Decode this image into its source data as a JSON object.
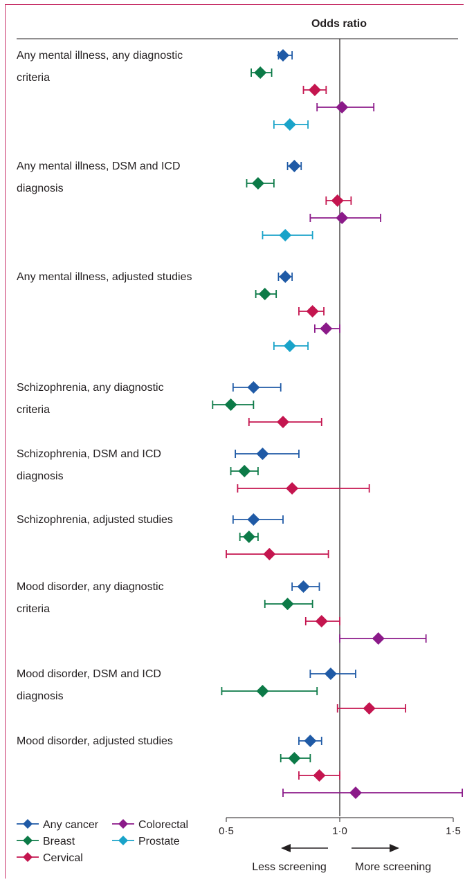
{
  "colors": {
    "Any cancer": "#1f5aa6",
    "Breast": "#0c7a47",
    "Cervical": "#c4154f",
    "Colorectal": "#8b1a89",
    "Prostate": "#19a3c9",
    "frame": "#c8346a",
    "text": "#231f20"
  },
  "chart_data": {
    "type": "forest",
    "xlabel": "Odds ratio",
    "xlim": [
      0.5,
      1.5
    ],
    "ticks": [
      {
        "value": 0.5,
        "label": "0·5"
      },
      {
        "value": 1.0,
        "label": "1·0"
      },
      {
        "value": 1.5,
        "label": "1·5"
      }
    ],
    "reference_line": 1.0,
    "direction_labels": {
      "left": "Less screening",
      "right": "More screening"
    },
    "legend": [
      "Any cancer",
      "Colorectal",
      "Breast",
      "Prostate",
      "Cervical"
    ],
    "groups": [
      {
        "label": [
          "Any mental illness, any diagnostic",
          "criteria"
        ],
        "rows": [
          {
            "series": "Any cancer",
            "or": 0.75,
            "lo": 0.73,
            "hi": 0.79
          },
          {
            "series": "Breast",
            "or": 0.65,
            "lo": 0.61,
            "hi": 0.7
          },
          {
            "series": "Cervical",
            "or": 0.89,
            "lo": 0.84,
            "hi": 0.94
          },
          {
            "series": "Colorectal",
            "or": 1.01,
            "lo": 0.9,
            "hi": 1.15
          },
          {
            "series": "Prostate",
            "or": 0.78,
            "lo": 0.71,
            "hi": 0.86
          }
        ]
      },
      {
        "label": [
          "Any mental illness, DSM and ICD",
          "diagnosis"
        ],
        "rows": [
          {
            "series": "Any cancer",
            "or": 0.8,
            "lo": 0.77,
            "hi": 0.83
          },
          {
            "series": "Breast",
            "or": 0.64,
            "lo": 0.59,
            "hi": 0.71
          },
          {
            "series": "Cervical",
            "or": 0.99,
            "lo": 0.94,
            "hi": 1.05
          },
          {
            "series": "Colorectal",
            "or": 1.01,
            "lo": 0.87,
            "hi": 1.18
          },
          {
            "series": "Prostate",
            "or": 0.76,
            "lo": 0.66,
            "hi": 0.88
          }
        ]
      },
      {
        "label": [
          "Any mental illness, adjusted studies"
        ],
        "rows": [
          {
            "series": "Any cancer",
            "or": 0.76,
            "lo": 0.73,
            "hi": 0.79
          },
          {
            "series": "Breast",
            "or": 0.67,
            "lo": 0.63,
            "hi": 0.72
          },
          {
            "series": "Cervical",
            "or": 0.88,
            "lo": 0.82,
            "hi": 0.93
          },
          {
            "series": "Colorectal",
            "or": 0.94,
            "lo": 0.89,
            "hi": 1.0
          },
          {
            "series": "Prostate",
            "or": 0.78,
            "lo": 0.71,
            "hi": 0.86
          }
        ]
      },
      {
        "label": [
          "Schizophrenia, any diagnostic",
          "criteria"
        ],
        "rows": [
          {
            "series": "Any cancer",
            "or": 0.62,
            "lo": 0.53,
            "hi": 0.74
          },
          {
            "series": "Breast",
            "or": 0.52,
            "lo": 0.44,
            "hi": 0.62
          },
          {
            "series": "Cervical",
            "or": 0.75,
            "lo": 0.6,
            "hi": 0.92
          }
        ]
      },
      {
        "label": [
          "Schizophrenia, DSM and ICD",
          "diagnosis"
        ],
        "rows": [
          {
            "series": "Any cancer",
            "or": 0.66,
            "lo": 0.54,
            "hi": 0.82
          },
          {
            "series": "Breast",
            "or": 0.58,
            "lo": 0.52,
            "hi": 0.64
          },
          {
            "series": "Cervical",
            "or": 0.79,
            "lo": 0.55,
            "hi": 1.13
          }
        ]
      },
      {
        "label": [
          "Schizophrenia, adjusted studies"
        ],
        "rows": [
          {
            "series": "Any cancer",
            "or": 0.62,
            "lo": 0.53,
            "hi": 0.75
          },
          {
            "series": "Breast",
            "or": 0.6,
            "lo": 0.56,
            "hi": 0.64
          },
          {
            "series": "Cervical",
            "or": 0.69,
            "lo": 0.5,
            "hi": 0.95
          }
        ]
      },
      {
        "label": [
          "Mood disorder, any diagnostic",
          "criteria"
        ],
        "rows": [
          {
            "series": "Any cancer",
            "or": 0.84,
            "lo": 0.79,
            "hi": 0.91
          },
          {
            "series": "Breast",
            "or": 0.77,
            "lo": 0.67,
            "hi": 0.88
          },
          {
            "series": "Cervical",
            "or": 0.92,
            "lo": 0.85,
            "hi": 1.0
          },
          {
            "series": "Colorectal",
            "or": 1.17,
            "lo": 1.0,
            "hi": 1.38
          }
        ]
      },
      {
        "label": [
          "Mood disorder, DSM and ICD",
          "diagnosis"
        ],
        "rows": [
          {
            "series": "Any cancer",
            "or": 0.96,
            "lo": 0.87,
            "hi": 1.07
          },
          {
            "series": "Breast",
            "or": 0.66,
            "lo": 0.48,
            "hi": 0.9
          },
          {
            "series": "Cervical",
            "or": 1.13,
            "lo": 0.99,
            "hi": 1.29
          }
        ]
      },
      {
        "label": [
          "Mood disorder, adjusted studies"
        ],
        "rows": [
          {
            "series": "Any cancer",
            "or": 0.87,
            "lo": 0.82,
            "hi": 0.92
          },
          {
            "series": "Breast",
            "or": 0.8,
            "lo": 0.74,
            "hi": 0.87
          },
          {
            "series": "Cervical",
            "or": 0.91,
            "lo": 0.82,
            "hi": 1.0
          },
          {
            "series": "Colorectal",
            "or": 1.07,
            "lo": 0.75,
            "hi": 1.54
          }
        ]
      }
    ]
  }
}
